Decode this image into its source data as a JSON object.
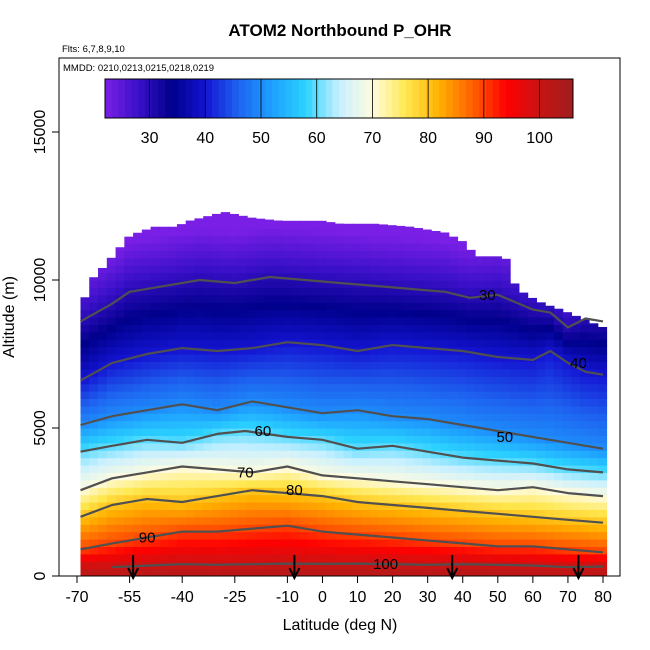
{
  "chart_data": {
    "type": "heatmap",
    "title": "ATOM2 Northbound P_OHR",
    "flights_note": "Flts: 6,7,8,9,10",
    "dates_note": "MMDD: 0210,0213,0215,0218,0219",
    "xlabel": "Latitude (deg N)",
    "ylabel": "Altitude (m)",
    "xlim": [
      -70,
      80
    ],
    "ylim": [
      0,
      17500
    ],
    "x_ticks": [
      -70,
      -55,
      -40,
      -25,
      -10,
      0,
      10,
      20,
      30,
      40,
      50,
      60,
      70,
      80
    ],
    "x_tick_labels": [
      "-70",
      "-55",
      "-40",
      "-25",
      "-10",
      "0",
      "10",
      "20",
      "30",
      "40",
      "50",
      "60",
      "70",
      "80"
    ],
    "y_ticks": [
      0,
      5000,
      10000,
      15000
    ],
    "y_tick_labels": [
      "0",
      "5000",
      "10000",
      "15000"
    ],
    "colorbar": {
      "range": [
        22,
        106
      ],
      "ticks": [
        30,
        40,
        50,
        60,
        70,
        80,
        90,
        100
      ],
      "tick_labels": [
        "30",
        "40",
        "50",
        "60",
        "70",
        "80",
        "90",
        "100"
      ],
      "colors": [
        "#7a1fe6",
        "#3a10c8",
        "#00008b",
        "#1414d2",
        "#1e64f0",
        "#1ea0ff",
        "#2bd2ff",
        "#c8f0ff",
        "#fffbe0",
        "#ffe850",
        "#ffb000",
        "#ff6000",
        "#ff0000",
        "#c81414",
        "#a01e1e"
      ]
    },
    "top_altitude_profile": {
      "lat": [
        -69,
        -66,
        -62,
        -55,
        -48,
        -42,
        -38,
        -28,
        -20,
        -12,
        -5,
        0,
        5,
        15,
        25,
        35,
        40,
        44,
        47,
        52,
        55,
        58,
        63,
        68,
        72,
        76,
        80,
        81
      ],
      "altitude": [
        9000,
        10000,
        10500,
        11500,
        11800,
        11800,
        12000,
        12300,
        12100,
        12000,
        12000,
        12000,
        11900,
        11900,
        11800,
        11600,
        11300,
        10800,
        10800,
        10800,
        9800,
        9500,
        9200,
        9000,
        8800,
        8600,
        8400,
        8400
      ]
    },
    "contours": [
      {
        "level": 30,
        "label": "30",
        "label_lat": 47,
        "label_alt": 9500,
        "lat": [
          -69,
          -60,
          -55,
          -45,
          -35,
          -25,
          -15,
          -5,
          5,
          15,
          25,
          35,
          42,
          50,
          60,
          65,
          70,
          75,
          80
        ],
        "altitude": [
          8600,
          9200,
          9600,
          9800,
          10000,
          9900,
          10100,
          10000,
          9900,
          9800,
          9700,
          9600,
          9400,
          9500,
          9000,
          8900,
          8400,
          8700,
          8600
        ]
      },
      {
        "level": 40,
        "label": "40",
        "label_lat": 73,
        "label_alt": 7200,
        "lat": [
          -69,
          -60,
          -50,
          -40,
          -30,
          -20,
          -10,
          0,
          10,
          20,
          30,
          40,
          50,
          60,
          65,
          70,
          75,
          80
        ],
        "altitude": [
          6600,
          7200,
          7500,
          7700,
          7600,
          7700,
          7900,
          7800,
          7600,
          7800,
          7700,
          7600,
          7400,
          7300,
          7600,
          7200,
          6900,
          6800
        ]
      },
      {
        "level": 50,
        "label": "50",
        "label_lat": 52,
        "label_alt": 4700,
        "lat": [
          -69,
          -60,
          -50,
          -40,
          -30,
          -20,
          -10,
          0,
          10,
          20,
          30,
          40,
          50,
          60,
          70,
          80
        ],
        "altitude": [
          5100,
          5400,
          5600,
          5800,
          5600,
          5900,
          5700,
          5500,
          5600,
          5400,
          5300,
          5100,
          4900,
          4700,
          4500,
          4300
        ]
      },
      {
        "level": 60,
        "label": "60",
        "label_lat": -17,
        "label_alt": 4900,
        "lat": [
          -69,
          -60,
          -50,
          -40,
          -30,
          -22,
          -10,
          0,
          10,
          20,
          30,
          40,
          50,
          60,
          70,
          80
        ],
        "altitude": [
          4200,
          4400,
          4600,
          4500,
          4800,
          4900,
          4700,
          4600,
          4300,
          4400,
          4200,
          4000,
          3900,
          3800,
          3600,
          3500
        ]
      },
      {
        "level": 70,
        "label": "70",
        "label_lat": -22,
        "label_alt": 3500,
        "lat": [
          -69,
          -60,
          -50,
          -40,
          -30,
          -20,
          -10,
          0,
          10,
          20,
          30,
          40,
          50,
          60,
          70,
          80
        ],
        "altitude": [
          2900,
          3300,
          3500,
          3700,
          3600,
          3500,
          3700,
          3400,
          3300,
          3200,
          3100,
          3000,
          2900,
          3000,
          2800,
          2700
        ]
      },
      {
        "level": 80,
        "label": "80",
        "label_lat": -8,
        "label_alt": 2900,
        "lat": [
          -69,
          -60,
          -50,
          -40,
          -30,
          -20,
          -10,
          0,
          10,
          20,
          30,
          40,
          50,
          60,
          70,
          80
        ],
        "altitude": [
          2000,
          2400,
          2600,
          2500,
          2700,
          2900,
          2800,
          2700,
          2500,
          2400,
          2300,
          2200,
          2100,
          2000,
          1900,
          1800
        ]
      },
      {
        "level": 90,
        "label": "90",
        "label_lat": -50,
        "label_alt": 1300,
        "lat": [
          -69,
          -60,
          -50,
          -40,
          -30,
          -20,
          -10,
          0,
          10,
          20,
          30,
          40,
          50,
          60,
          70,
          80
        ],
        "altitude": [
          900,
          1100,
          1300,
          1500,
          1500,
          1600,
          1700,
          1500,
          1400,
          1300,
          1200,
          1100,
          1000,
          1000,
          900,
          800
        ]
      },
      {
        "level": 100,
        "label": "100",
        "label_lat": 18,
        "label_alt": 400,
        "lat": [
          -60,
          -50,
          -40,
          -30,
          -20,
          -10,
          0,
          10,
          20,
          30,
          40,
          50,
          60,
          70,
          80
        ],
        "altitude": [
          300,
          350,
          400,
          380,
          400,
          420,
          410,
          420,
          400,
          380,
          400,
          380,
          350,
          300,
          320
        ]
      }
    ],
    "sonde_markers_lat": [
      -54,
      -8,
      37,
      73
    ]
  }
}
